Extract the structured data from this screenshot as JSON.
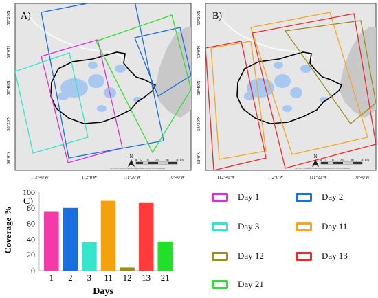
{
  "panel_a": {
    "label": "A)",
    "lat_labels": [
      "59°20'N",
      "59°0'N",
      "58°40'N",
      "58°20'N",
      "58°0'N"
    ],
    "lon_labels": [
      "112°40'W",
      "112°0'W",
      "111°20'W",
      "110°40'W"
    ],
    "scale_labels": [
      "0",
      "5",
      "10",
      "20",
      "30",
      "40 km"
    ],
    "north": "N",
    "attribution": "Esri, HERE, Garmin, (c) OpenStreetMap contributors, and the GIS user community"
  },
  "panel_b": {
    "label": "B)",
    "lat_labels": [
      "59°20'N",
      "59°0'N",
      "58°40'N",
      "58°20'N",
      "58°0'N"
    ],
    "lon_labels": [
      "112°40'W",
      "112°0'W",
      "111°20'W",
      "110°40'W"
    ],
    "scale_labels": [
      "0",
      "5",
      "10",
      "20",
      "30",
      "40 km"
    ],
    "north": "N",
    "attribution": "Esri, HERE, Garmin, (c) OpenStreetMap contributors, and the GIS user community"
  },
  "panel_c": {
    "label": "C)"
  },
  "legend": [
    {
      "label": "Day 1",
      "color": "#d633d6"
    },
    {
      "label": "Day 2",
      "color": "#1a6fe0"
    },
    {
      "label": "Day 3",
      "color": "#33e6cc"
    },
    {
      "label": "Day 11",
      "color": "#f5a623"
    },
    {
      "label": "Day 12",
      "color": "#9a8f1a"
    },
    {
      "label": "Day 13",
      "color": "#ee2a2a"
    },
    {
      "label": "Day 21",
      "color": "#33dd33"
    }
  ],
  "chart_data": {
    "type": "bar",
    "categories": [
      "1",
      "2",
      "3",
      "11",
      "12",
      "13",
      "21"
    ],
    "values": [
      75,
      80,
      36,
      89,
      4,
      87,
      37
    ],
    "colors": [
      "#f43aa8",
      "#1a6fe0",
      "#33e6cc",
      "#f5a00f",
      "#9a8f1a",
      "#ff3b3b",
      "#22e02a"
    ],
    "xlabel": "Days",
    "ylabel": "Coverage %",
    "ylim": [
      0,
      100
    ],
    "yticks": [
      0,
      20,
      40,
      60,
      80,
      100
    ],
    "grid": false
  }
}
